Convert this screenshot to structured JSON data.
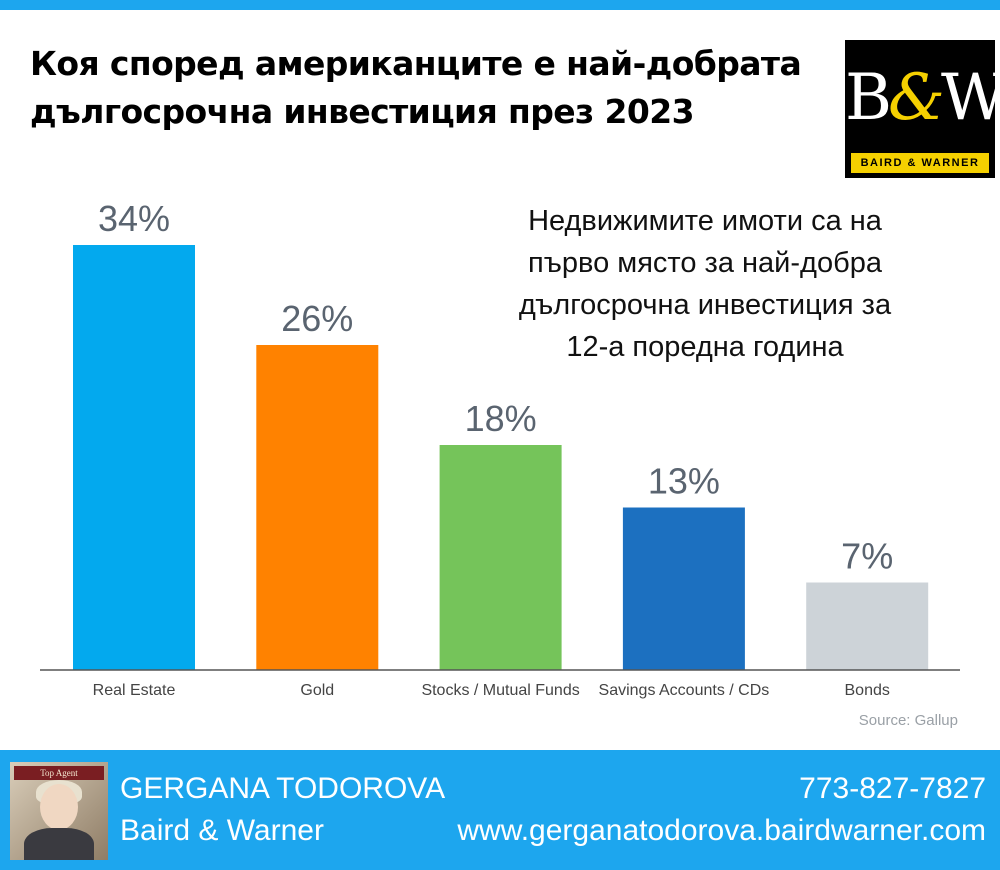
{
  "title": {
    "line1": "Коя според американците е най-добрата",
    "line2": "дългосрочна инвестиция през 2023"
  },
  "logo": {
    "mark_b": "B",
    "mark_amp": "&",
    "mark_w": "W",
    "band": "BAIRD & WARNER"
  },
  "annotation": {
    "line1": "Недвижимите имоти са на",
    "line2": "първо място за най-добра",
    "line3": "дългосрочна инвестиция за",
    "line4": "12-а поредна година"
  },
  "chart_data": {
    "type": "bar",
    "title": "Коя според американците е най-добрата дългосрочна инвестиция през 2023",
    "categories": [
      "Real Estate",
      "Gold",
      "Stocks / Mutual Funds",
      "Savings Accounts / CDs",
      "Bonds"
    ],
    "values": [
      34,
      26,
      18,
      13,
      7
    ],
    "value_labels": [
      "34%",
      "26%",
      "18%",
      "13%",
      "7%"
    ],
    "colors": [
      "#03a9ee",
      "#ff8200",
      "#75c45a",
      "#1c70c0",
      "#cdd3d8"
    ],
    "label_color": "#5a6470",
    "xlabel": "",
    "ylabel": "",
    "ylim": [
      0,
      40
    ],
    "grid": false,
    "legend": "none"
  },
  "source": "Source: Gallup",
  "footer": {
    "photo_badge": "Top Agent",
    "name": "GERGANA TODOROVA",
    "company": "Baird & Warner",
    "phone": "773-827-7827",
    "website": "www.gergana​todorova.bairdwarner.com"
  }
}
